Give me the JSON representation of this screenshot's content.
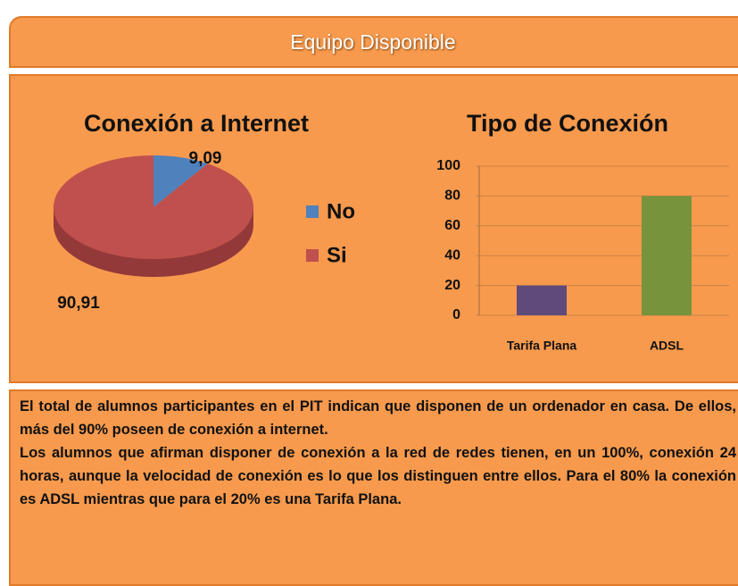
{
  "header": {
    "title": "Equipo Disponible"
  },
  "chart_data": [
    {
      "type": "pie",
      "title": "Conexión a Internet",
      "categories": [
        "No",
        "Si"
      ],
      "values": [
        9.09,
        90.91
      ],
      "value_labels": [
        "9,09",
        "90,91"
      ],
      "colors": [
        "#4f81bd",
        "#c0504d"
      ],
      "legend": "right"
    },
    {
      "type": "bar",
      "title": "Tipo de Conexión",
      "categories": [
        "Tarifa Plana",
        "ADSL"
      ],
      "values": [
        20,
        80
      ],
      "colors": [
        "#604a7b",
        "#77933c"
      ],
      "ylim": [
        0,
        100
      ],
      "yticks": [
        0,
        20,
        40,
        60,
        80,
        100
      ],
      "grid": true
    }
  ],
  "text": {
    "paragraphs": [
      "El total de alumnos participantes en el PIT indican que disponen de un ordenador en casa. De ellos, más del 90% poseen de conexión a internet.",
      "Los alumnos que afirman disponer de conexión a la red de redes tienen, en un 100%, conexión 24 horas, aunque la velocidad de conexión es lo que los distinguen entre ellos. Para el 80% la conexión es ADSL mientras que para el 20% es una Tarifa Plana."
    ]
  }
}
